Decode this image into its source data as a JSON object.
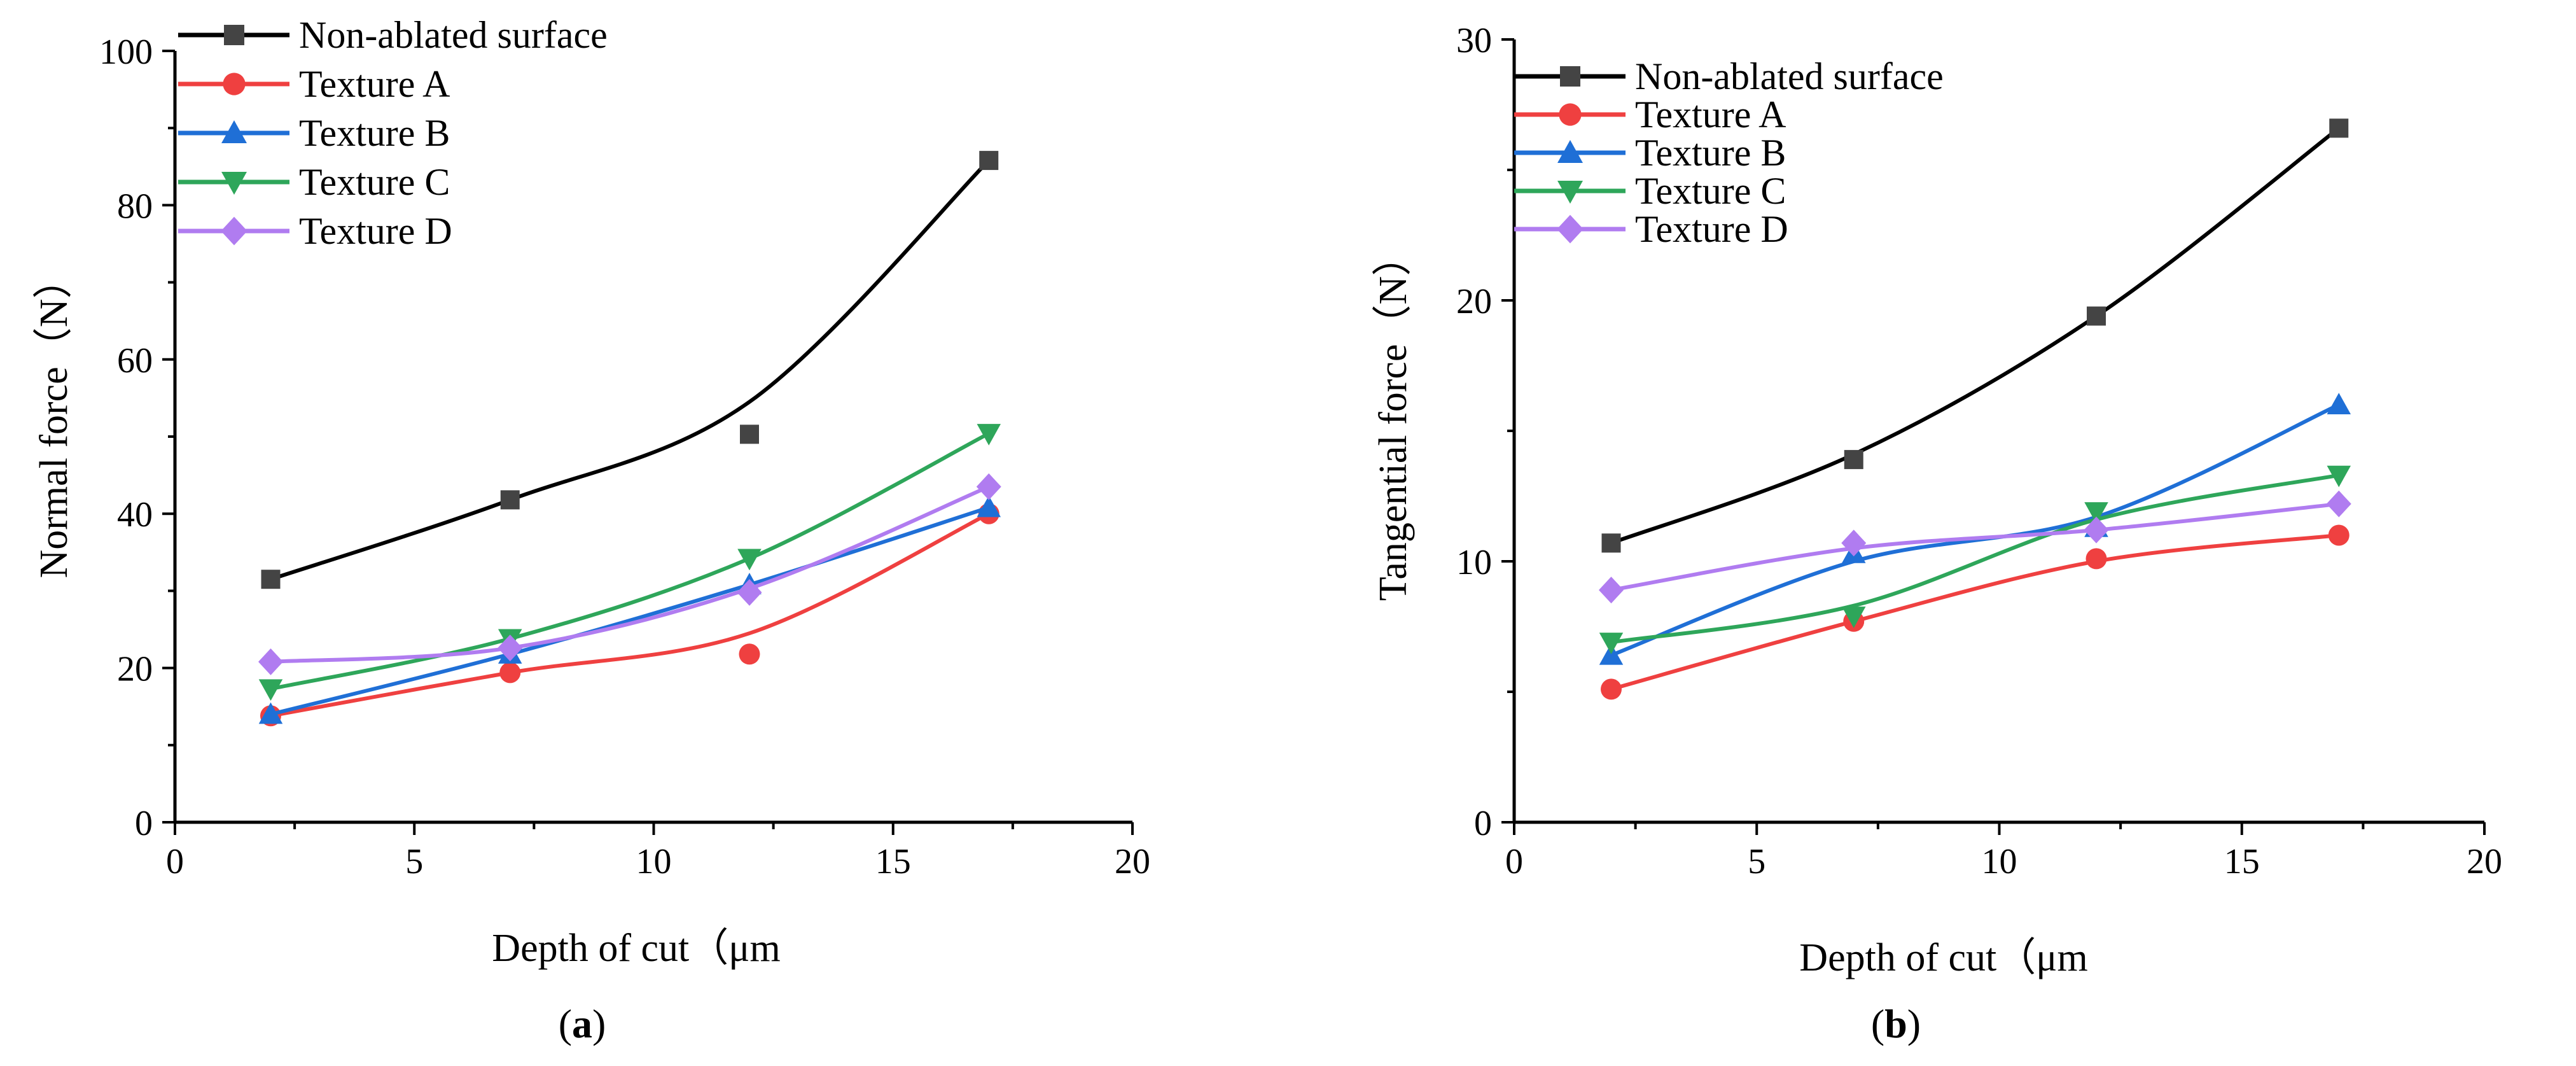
{
  "series_styles": [
    {
      "key": "non_ablated",
      "marker": "square",
      "color": "#000000",
      "marker_color": "#444444"
    },
    {
      "key": "texture_a",
      "marker": "circle",
      "color": "#ef4040",
      "marker_color": "#ef4040"
    },
    {
      "key": "texture_b",
      "marker": "triangle-up",
      "color": "#1f6fd6",
      "marker_color": "#1f6fd6"
    },
    {
      "key": "texture_c",
      "marker": "triangle-down",
      "color": "#2ea65a",
      "marker_color": "#2ea65a"
    },
    {
      "key": "texture_d",
      "marker": "diamond",
      "color": "#b07cf0",
      "marker_color": "#b07cf0"
    }
  ],
  "chart_data": [
    {
      "id": "a",
      "type": "line",
      "panel_label": "a",
      "xlabel": "Depth of cut（μm",
      "ylabel": "Normal force（N）",
      "xlim": [
        0,
        20
      ],
      "ylim": [
        0,
        100
      ],
      "xticks": [
        0,
        5,
        10,
        15,
        20
      ],
      "yticks": [
        0,
        20,
        40,
        60,
        80,
        100
      ],
      "x": [
        2,
        7,
        12,
        17
      ],
      "legend_position": "top-left",
      "series": [
        {
          "name": "Non-ablated surface",
          "values": [
            31.5,
            41.8,
            50.3,
            85.8
          ],
          "fit": [
            31.5,
            41.8,
            54.5,
            85.8
          ]
        },
        {
          "name": "Texture A",
          "values": [
            13.8,
            19.4,
            21.8,
            40.0
          ],
          "fit": [
            13.8,
            19.4,
            24.5,
            40.0
          ]
        },
        {
          "name": "Texture B",
          "values": [
            14.0,
            21.8,
            30.8,
            40.8
          ],
          "fit": [
            14.0,
            21.8,
            30.8,
            40.8
          ]
        },
        {
          "name": "Texture C",
          "values": [
            17.3,
            23.8,
            34.2,
            50.4
          ],
          "fit": [
            17.3,
            23.8,
            34.2,
            50.4
          ]
        },
        {
          "name": "Texture D",
          "values": [
            20.8,
            22.6,
            29.8,
            43.5
          ],
          "fit": [
            20.8,
            22.6,
            30.3,
            43.5
          ]
        }
      ]
    },
    {
      "id": "b",
      "type": "line",
      "panel_label": "b",
      "xlabel": "Depth of cut（μm",
      "ylabel": "Tangential force（N）",
      "xlim": [
        0,
        20
      ],
      "ylim": [
        0,
        30
      ],
      "xticks": [
        0,
        5,
        10,
        15,
        20
      ],
      "yticks": [
        0,
        10,
        20,
        30
      ],
      "x": [
        2,
        7,
        12,
        17
      ],
      "legend_position": "top-left",
      "series": [
        {
          "name": "Non-ablated surface",
          "values": [
            10.7,
            13.9,
            19.4,
            26.6
          ],
          "fit": [
            10.7,
            14.1,
            19.4,
            26.6
          ]
        },
        {
          "name": "Texture A",
          "values": [
            5.1,
            7.7,
            10.1,
            11.0
          ],
          "fit": [
            5.1,
            7.7,
            10.0,
            11.0
          ]
        },
        {
          "name": "Texture B",
          "values": [
            6.4,
            10.3,
            11.3,
            16.0
          ],
          "fit": [
            6.4,
            10.0,
            11.7,
            16.0
          ]
        },
        {
          "name": "Texture C",
          "values": [
            6.9,
            7.9,
            11.9,
            13.3
          ],
          "fit": [
            6.9,
            8.3,
            11.6,
            13.3
          ]
        },
        {
          "name": "Texture D",
          "values": [
            8.9,
            10.7,
            11.2,
            12.2
          ],
          "fit": [
            8.9,
            10.5,
            11.2,
            12.2
          ]
        }
      ]
    }
  ]
}
